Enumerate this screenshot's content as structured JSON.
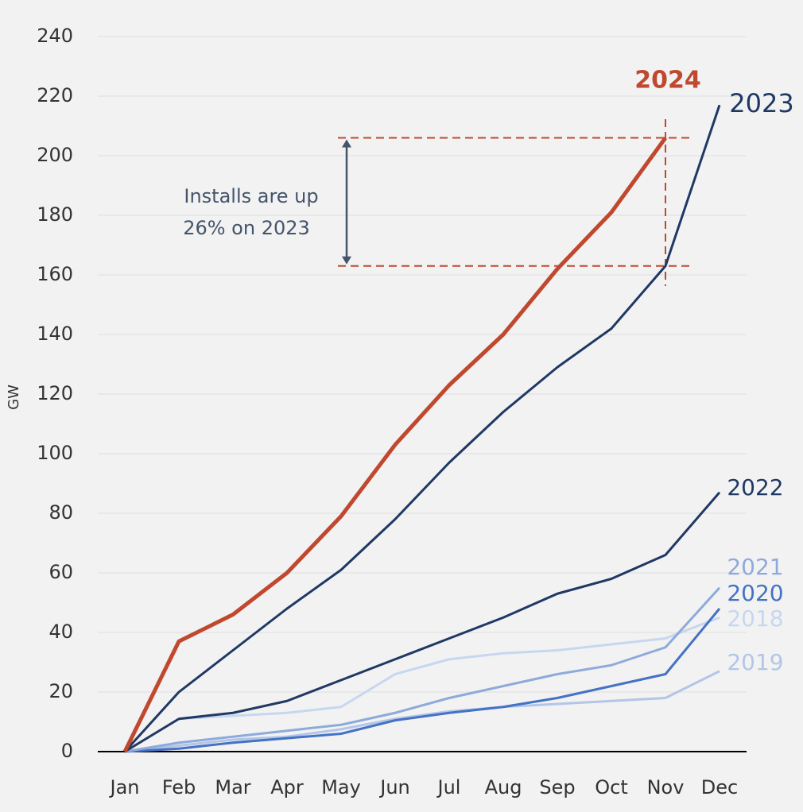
{
  "chart_data": {
    "type": "line",
    "y_label": "GW",
    "categories": [
      "Jan",
      "Feb",
      "Mar",
      "Apr",
      "May",
      "Jun",
      "Jul",
      "Aug",
      "Sep",
      "Oct",
      "Nov",
      "Dec"
    ],
    "ylim": [
      0,
      240
    ],
    "yticks": [
      0,
      20,
      40,
      60,
      80,
      100,
      120,
      140,
      160,
      180,
      200,
      220,
      240
    ],
    "grid": true,
    "annotation": [
      "Installs are up",
      "26% on 2023"
    ],
    "series": [
      {
        "name": "2019",
        "color": "#b3c6e7",
        "values": [
          0,
          2,
          4,
          5,
          7.5,
          11,
          13.5,
          15,
          16,
          17,
          18,
          27
        ]
      },
      {
        "name": "2018",
        "color": "#c7d7ef",
        "values": [
          0,
          11,
          12,
          13,
          15,
          26,
          31,
          33,
          34,
          36,
          38,
          45
        ]
      },
      {
        "name": "2020",
        "color": "#4472c4",
        "values": [
          0,
          1,
          3,
          4.5,
          6,
          10.5,
          13,
          15,
          18,
          22,
          26,
          48
        ]
      },
      {
        "name": "2021",
        "color": "#8eaadb",
        "values": [
          0,
          3,
          5,
          7,
          9,
          13,
          18,
          22,
          26,
          29,
          35,
          55
        ]
      },
      {
        "name": "2022",
        "color": "#203864",
        "values": [
          0,
          11,
          13,
          17,
          24,
          31,
          38,
          45,
          53,
          58,
          66,
          87
        ]
      },
      {
        "name": "2023",
        "color": "#1f3864",
        "values": [
          0,
          20,
          34,
          48,
          61,
          78,
          97,
          114,
          129,
          142,
          163,
          217
        ]
      },
      {
        "name": "2024",
        "color": "#c0482e",
        "values": [
          0,
          37,
          46,
          60,
          79,
          103,
          123,
          140,
          162,
          181,
          206,
          null
        ]
      }
    ]
  }
}
